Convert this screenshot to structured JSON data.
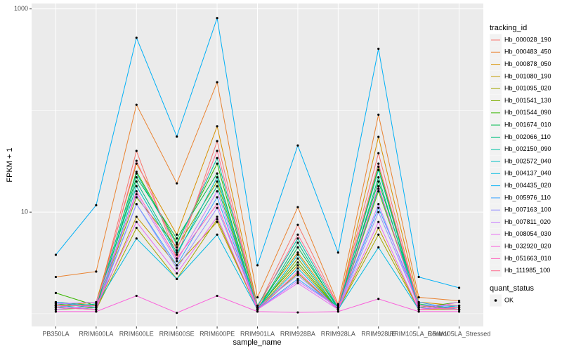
{
  "chart_data": {
    "type": "line",
    "y_label": "FPKM + 1",
    "x_label": "sample_name",
    "log_y": true,
    "grid": true,
    "legend_title": "tracking_id",
    "legend_position": "right",
    "point_legend_title": "quant_status",
    "point_legend_entries": [
      "OK"
    ],
    "point_color": "#000000",
    "categories": [
      "PB350LA",
      "RRIM600LA",
      "RRIM600LE",
      "RRIM600SE",
      "RRIM600PE",
      "RRIM901LA",
      "RRIM928BA",
      "RRIM928LA",
      "RRIM928LE",
      "RRIM105LA_Control",
      "RRIM105LA_Stressed"
    ],
    "ylim": [
      0.75,
      1130
    ],
    "yticks": [
      10,
      1000
    ],
    "series": [
      {
        "name": "Hb_000028_190",
        "color": "#F8766D",
        "values": [
          1.3,
          1.2,
          40,
          3.5,
          50,
          1.15,
          7.5,
          1.2,
          38,
          1.2,
          1.15
        ]
      },
      {
        "name": "Hb_000483_450",
        "color": "#EA8331",
        "values": [
          2.3,
          2.6,
          114,
          19.2,
          190,
          1.45,
          11.2,
          1.24,
          91,
          1.45,
          1.34
        ]
      },
      {
        "name": "Hb_000878_050",
        "color": "#D89000",
        "values": [
          1.2,
          1.3,
          30,
          6,
          70,
          1.2,
          4,
          1.15,
          55,
          1.3,
          1.2
        ]
      },
      {
        "name": "Hb_001080_190",
        "color": "#C09B00",
        "values": [
          1.15,
          1.1,
          9,
          3,
          8,
          1.1,
          3,
          1.1,
          7,
          1.1,
          1.1
        ]
      },
      {
        "name": "Hb_001095_020",
        "color": "#A3A500",
        "values": [
          1.2,
          1.1,
          7,
          2.2,
          8.5,
          1.1,
          2.5,
          1.1,
          6,
          1.1,
          1.15
        ]
      },
      {
        "name": "Hb_001541_130",
        "color": "#7CAE00",
        "values": [
          1.1,
          1.15,
          14,
          4.5,
          20,
          1.1,
          3.5,
          1.1,
          16,
          1.2,
          1.1
        ]
      },
      {
        "name": "Hb_001544_090",
        "color": "#39B600",
        "values": [
          1.6,
          1.2,
          25,
          5,
          30,
          1.15,
          3.2,
          1.1,
          28,
          1.15,
          1.3
        ]
      },
      {
        "name": "Hb_001674_010",
        "color": "#00BB4E",
        "values": [
          1.25,
          1.15,
          22,
          5.5,
          24,
          1.1,
          4.5,
          1.15,
          20,
          1.25,
          1.1
        ]
      },
      {
        "name": "Hb_002066_110",
        "color": "#00BF7D",
        "values": [
          1.3,
          1.2,
          20,
          4,
          18,
          1.1,
          5,
          1.1,
          22,
          1.1,
          1.2
        ]
      },
      {
        "name": "Hb_002150_090",
        "color": "#00C1A3",
        "values": [
          1.15,
          1.25,
          24,
          4.8,
          34,
          1.2,
          5.5,
          1.15,
          26,
          1.15,
          1.1
        ]
      },
      {
        "name": "Hb_002572_040",
        "color": "#00BFC4",
        "values": [
          1.2,
          1.1,
          18,
          3.8,
          22,
          1.1,
          3.8,
          1.1,
          17,
          1.2,
          1.1
        ]
      },
      {
        "name": "Hb_004137_040",
        "color": "#00BAE0",
        "values": [
          1.1,
          1.2,
          5.5,
          2.2,
          6,
          1.1,
          2.8,
          1.1,
          4.5,
          1.1,
          1.2
        ]
      },
      {
        "name": "Hb_004435_020",
        "color": "#00B0F6",
        "values": [
          3.8,
          11.7,
          520,
          55.5,
          813,
          3.0,
          45.3,
          4.0,
          405,
          2.3,
          1.8
        ]
      },
      {
        "name": "Hb_005976_110",
        "color": "#35A2FF",
        "values": [
          1.3,
          1.15,
          12,
          3,
          14,
          1.1,
          2.2,
          1.15,
          11,
          1.3,
          1.1
        ]
      },
      {
        "name": "Hb_007163_100",
        "color": "#9590FF",
        "values": [
          1.2,
          1.1,
          12,
          2.8,
          11,
          1.15,
          2.4,
          1.1,
          10,
          1.2,
          1.2
        ]
      },
      {
        "name": "Hb_007811_020",
        "color": "#C77CFF",
        "values": [
          1.25,
          1.3,
          15,
          3.3,
          16,
          1.1,
          2.1,
          1.15,
          12,
          1.15,
          1.1
        ]
      },
      {
        "name": "Hb_008054_030",
        "color": "#E76BF3",
        "values": [
          1.1,
          1.2,
          8,
          2.5,
          9,
          1.1,
          2,
          1.1,
          8,
          1.1,
          1.3
        ]
      },
      {
        "name": "Hb_032920_020",
        "color": "#FA62DB",
        "values": [
          1.05,
          1.05,
          1.5,
          1.02,
          1.5,
          1.05,
          1.03,
          1.05,
          1.4,
          1.05,
          1.05
        ]
      },
      {
        "name": "Hb_051663_010",
        "color": "#FF62BC",
        "values": [
          1.15,
          1.1,
          16,
          3.5,
          12,
          1.1,
          2.6,
          1.1,
          18,
          1.1,
          1.15
        ]
      },
      {
        "name": "Hb_111985_100",
        "color": "#FF6C91",
        "values": [
          1.2,
          1.2,
          32,
          4.2,
          40,
          1.15,
          6,
          1.2,
          30,
          1.2,
          1.1
        ]
      }
    ]
  }
}
